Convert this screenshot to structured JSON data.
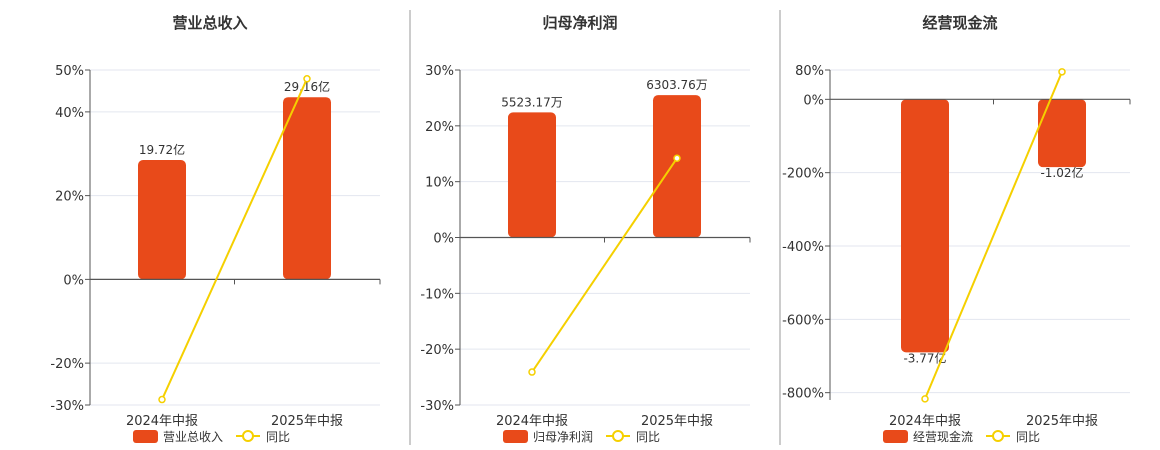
{
  "colors": {
    "bar": "#E84A1A",
    "line": "#F5D000",
    "grid": "#E3E6EF",
    "axis": "#555555",
    "separator": "#999999",
    "text": "#333333"
  },
  "legend": {
    "bar_icon": "bar-swatch",
    "line_icon": "line-circle-marker"
  },
  "chart_data": [
    {
      "type": "bar+line",
      "title": "营业总收入",
      "categories": [
        "2024年中报",
        "2025年中报"
      ],
      "ylim": [
        -30,
        50
      ],
      "yticks": [
        -30,
        -20,
        0,
        20,
        40,
        50
      ],
      "ytick_labels": [
        "-30%",
        "-20%",
        "0%",
        "20%",
        "40%",
        "50%"
      ],
      "series": [
        {
          "name": "营业总收入",
          "kind": "bar",
          "values": [
            28.5,
            43.5
          ],
          "labels": [
            "19.72亿",
            "29.16亿"
          ]
        },
        {
          "name": "同比",
          "kind": "line",
          "values": [
            -28.7,
            47.9
          ]
        }
      ]
    },
    {
      "type": "bar+line",
      "title": "归母净利润",
      "categories": [
        "2024年中报",
        "2025年中报"
      ],
      "ylim": [
        -30,
        30
      ],
      "yticks": [
        -30,
        -20,
        -10,
        0,
        10,
        20,
        30
      ],
      "ytick_labels": [
        "-30%",
        "-20%",
        "-10%",
        "0%",
        "10%",
        "20%",
        "30%"
      ],
      "series": [
        {
          "name": "归母净利润",
          "kind": "bar",
          "values": [
            22.4,
            25.5
          ],
          "labels": [
            "5523.17万",
            "6303.76万"
          ]
        },
        {
          "name": "同比",
          "kind": "line",
          "values": [
            -24.1,
            14.2
          ]
        }
      ]
    },
    {
      "type": "bar+line",
      "title": "经营现金流",
      "categories": [
        "2024年中报",
        "2025年中报"
      ],
      "ylim": [
        -820,
        80
      ],
      "yticks": [
        -800,
        -600,
        -400,
        -200,
        0,
        80
      ],
      "ytick_labels": [
        "-800%",
        "-600%",
        "-400%",
        "-200%",
        "0%",
        "80%"
      ],
      "series": [
        {
          "name": "经营现金流",
          "kind": "bar",
          "values": [
            -690,
            -185
          ],
          "labels": [
            "-3.77亿",
            "-1.02亿"
          ]
        },
        {
          "name": "同比",
          "kind": "line",
          "values": [
            -817,
            75
          ]
        }
      ]
    }
  ]
}
